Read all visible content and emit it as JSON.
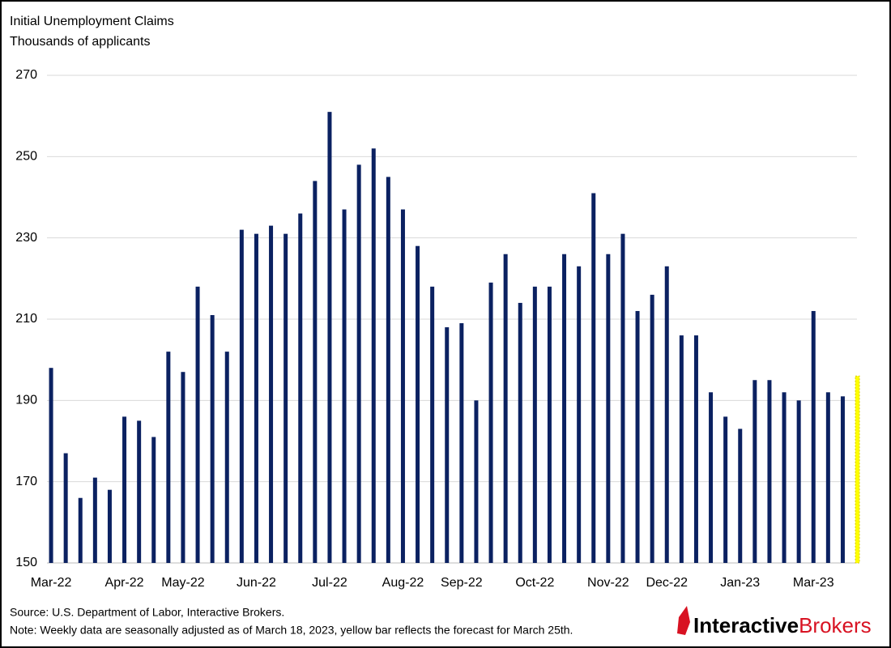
{
  "chart_data": {
    "type": "bar",
    "title": "Initial Unemployment  Claims",
    "subtitle": "Thousands of applicants",
    "categories": [
      "Mar-22",
      null,
      null,
      null,
      null,
      "Apr-22",
      null,
      null,
      null,
      "May-22",
      null,
      null,
      null,
      null,
      "Jun-22",
      null,
      null,
      null,
      null,
      "Jul-22",
      null,
      null,
      null,
      null,
      "Aug-22",
      null,
      null,
      null,
      "Sep-22",
      null,
      null,
      null,
      null,
      "Oct-22",
      null,
      null,
      null,
      null,
      "Nov-22",
      null,
      null,
      null,
      "Dec-22",
      null,
      null,
      null,
      null,
      "Jan-23",
      null,
      null,
      null,
      null,
      "Mar-23",
      null,
      null,
      null
    ],
    "values": [
      198,
      177,
      166,
      171,
      168,
      186,
      185,
      181,
      202,
      197,
      218,
      211,
      202,
      232,
      231,
      233,
      231,
      236,
      244,
      261,
      237,
      248,
      252,
      245,
      237,
      228,
      218,
      208,
      209,
      190,
      219,
      226,
      214,
      218,
      218,
      226,
      223,
      241,
      226,
      231,
      212,
      216,
      223,
      206,
      206,
      192,
      186,
      183,
      195,
      195,
      192,
      190,
      212,
      192,
      191,
      196
    ],
    "colors": [
      "#0b2161",
      "#0b2161",
      "#0b2161",
      "#0b2161",
      "#0b2161",
      "#0b2161",
      "#0b2161",
      "#0b2161",
      "#0b2161",
      "#0b2161",
      "#0b2161",
      "#0b2161",
      "#0b2161",
      "#0b2161",
      "#0b2161",
      "#0b2161",
      "#0b2161",
      "#0b2161",
      "#0b2161",
      "#0b2161",
      "#0b2161",
      "#0b2161",
      "#0b2161",
      "#0b2161",
      "#0b2161",
      "#0b2161",
      "#0b2161",
      "#0b2161",
      "#0b2161",
      "#0b2161",
      "#0b2161",
      "#0b2161",
      "#0b2161",
      "#0b2161",
      "#0b2161",
      "#0b2161",
      "#0b2161",
      "#0b2161",
      "#0b2161",
      "#0b2161",
      "#0b2161",
      "#0b2161",
      "#0b2161",
      "#0b2161",
      "#0b2161",
      "#0b2161",
      "#0b2161",
      "#0b2161",
      "#0b2161",
      "#0b2161",
      "#0b2161",
      "#0b2161",
      "#0b2161",
      "#0b2161",
      "#0b2161",
      "#ffff00"
    ],
    "ylim": [
      150,
      270
    ],
    "yticks": [
      150,
      170,
      190,
      210,
      230,
      250,
      270
    ],
    "grid": true,
    "source": "Source: U.S. Department of Labor, Interactive Brokers.",
    "note": "Note: Weekly data are seasonally adjusted as of March 18, 2023, yellow bar reflects the forecast for March 25th.",
    "logo": [
      "Interactive",
      "Brokers"
    ]
  }
}
